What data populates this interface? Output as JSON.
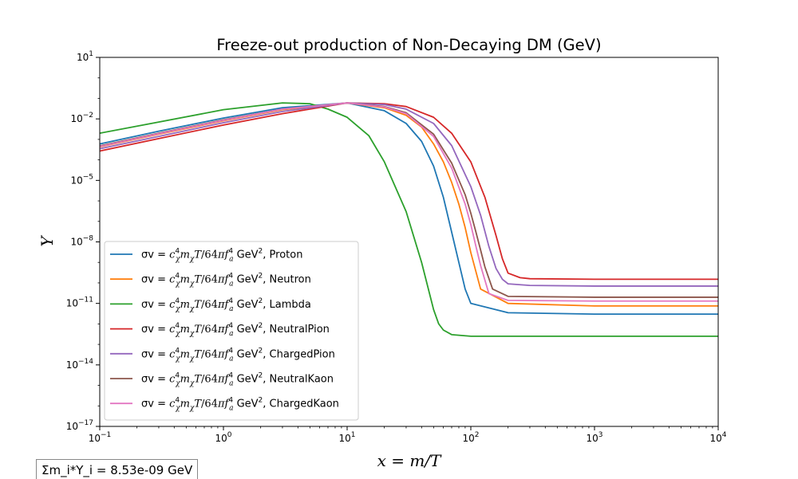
{
  "chart_data": {
    "type": "line",
    "title": "Freeze-out production of Non-Decaying DM (GeV)",
    "xlabel": "x = m/T",
    "ylabel": "Y",
    "xscale": "log",
    "yscale": "log",
    "xlim": [
      0.1,
      10000
    ],
    "ylim": [
      1e-17,
      10
    ],
    "x_ticks": [
      {
        "base": "10",
        "exp": "−1"
      },
      {
        "base": "10",
        "exp": "0"
      },
      {
        "base": "10",
        "exp": "1"
      },
      {
        "base": "10",
        "exp": "2"
      },
      {
        "base": "10",
        "exp": "3"
      },
      {
        "base": "10",
        "exp": "4"
      }
    ],
    "y_ticks": [
      {
        "base": "10",
        "exp": "1"
      },
      {
        "base": "10",
        "exp": "−2"
      },
      {
        "base": "10",
        "exp": "−5"
      },
      {
        "base": "10",
        "exp": "−8"
      },
      {
        "base": "10",
        "exp": "−11"
      },
      {
        "base": "10",
        "exp": "−14"
      },
      {
        "base": "10",
        "exp": "−17"
      }
    ],
    "legend_position": "lower-left",
    "legend_prefix": "σv = ",
    "legend_formula": "c_χ^4 m_χ T/64π f_a^4",
    "legend_unit": " GeV",
    "legend_unit_exp": "2",
    "series": [
      {
        "name": "Proton",
        "color": "#1f77b4",
        "x": [
          0.1,
          0.3,
          1,
          3,
          10,
          20,
          30,
          40,
          50,
          60,
          70,
          80,
          90,
          100,
          200,
          1000,
          10000
        ],
        "y": [
          0.0006,
          0.0025,
          0.011,
          0.035,
          0.06,
          0.025,
          0.006,
          0.0008,
          5e-05,
          1.5e-06,
          3e-08,
          1e-09,
          5e-11,
          1e-11,
          3.5e-12,
          3e-12,
          3e-12
        ]
      },
      {
        "name": "Neutron",
        "color": "#ff7f0e",
        "x": [
          0.1,
          0.3,
          1,
          3,
          10,
          20,
          30,
          40,
          50,
          60,
          70,
          80,
          90,
          100,
          120,
          200,
          1000,
          10000
        ],
        "y": [
          0.00043,
          0.0018,
          0.008,
          0.028,
          0.06,
          0.035,
          0.015,
          0.004,
          0.0006,
          8e-05,
          8e-06,
          7e-07,
          5e-08,
          3e-09,
          5e-11,
          1e-11,
          7.5e-12,
          7.5e-12
        ]
      },
      {
        "name": "Lambda",
        "color": "#2ca02c",
        "x": [
          0.1,
          0.3,
          1,
          3,
          5,
          7,
          10,
          15,
          20,
          30,
          40,
          50,
          55,
          60,
          70,
          100,
          1000,
          10000
        ],
        "y": [
          0.002,
          0.007,
          0.028,
          0.06,
          0.055,
          0.03,
          0.012,
          0.0015,
          8e-05,
          3e-07,
          1e-09,
          5e-12,
          1e-12,
          5e-13,
          3e-13,
          2.5e-13,
          2.5e-13,
          2.5e-13
        ]
      },
      {
        "name": "NeutralPion",
        "color": "#d62728",
        "x": [
          0.1,
          0.3,
          1,
          3,
          10,
          20,
          30,
          50,
          70,
          100,
          130,
          160,
          180,
          200,
          250,
          300,
          1000,
          10000
        ],
        "y": [
          0.00027,
          0.0011,
          0.005,
          0.018,
          0.06,
          0.055,
          0.04,
          0.012,
          0.002,
          8e-05,
          1.5e-06,
          2e-08,
          1.5e-09,
          3e-10,
          1.8e-10,
          1.6e-10,
          1.5e-10,
          1.5e-10
        ]
      },
      {
        "name": "ChargedPion",
        "color": "#9467bd",
        "x": [
          0.1,
          0.3,
          1,
          3,
          10,
          20,
          30,
          50,
          70,
          100,
          120,
          140,
          160,
          180,
          200,
          300,
          1000,
          10000
        ],
        "y": [
          0.00035,
          0.0014,
          0.0065,
          0.023,
          0.06,
          0.05,
          0.03,
          0.006,
          0.0005,
          5e-06,
          2e-07,
          6e-09,
          5e-10,
          1.5e-10,
          9e-11,
          7.5e-11,
          7e-11,
          7e-11
        ]
      },
      {
        "name": "NeutralKaon",
        "color": "#8c564b",
        "x": [
          0.1,
          0.3,
          1,
          3,
          10,
          20,
          30,
          50,
          70,
          90,
          100,
          110,
          120,
          130,
          150,
          200,
          1000,
          10000
        ],
        "y": [
          0.00048,
          0.002,
          0.009,
          0.03,
          0.06,
          0.04,
          0.02,
          0.0018,
          7e-05,
          2e-06,
          2.5e-07,
          3e-08,
          4e-09,
          6e-10,
          5e-11,
          2.2e-11,
          2e-11,
          2e-11
        ]
      },
      {
        "name": "ChargedKaon",
        "color": "#e377c2",
        "x": [
          0.1,
          0.3,
          1,
          3,
          10,
          20,
          30,
          50,
          70,
          90,
          100,
          110,
          120,
          140,
          200,
          1000,
          10000
        ],
        "y": [
          0.00045,
          0.0019,
          0.0085,
          0.03,
          0.06,
          0.038,
          0.018,
          0.0014,
          4e-05,
          7e-07,
          7e-08,
          6e-09,
          7e-10,
          3e-11,
          1.4e-11,
          1.3e-11,
          1.3e-11
        ]
      }
    ]
  },
  "summary": {
    "text": "Σm_i*Y_i = 8.53e-09 GeV"
  }
}
